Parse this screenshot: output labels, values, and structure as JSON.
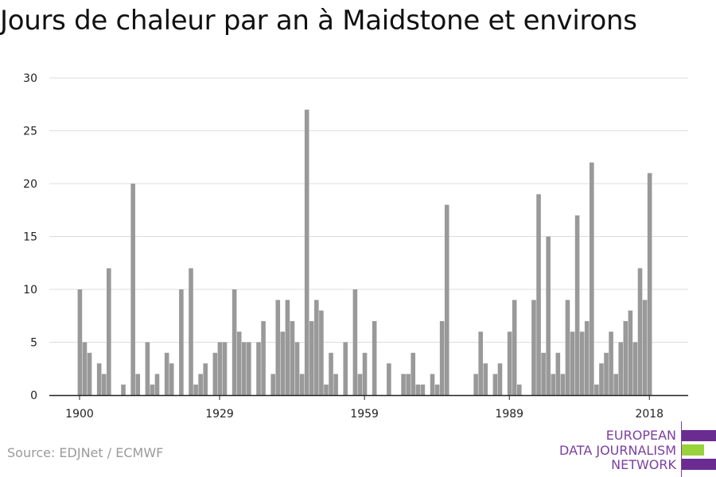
{
  "title": "Jours de chaleur par an à Maidstone et environs",
  "source": "Source: EDJNet / ECMWF",
  "logo": {
    "lines": [
      "EUROPEAN",
      "DATA JOURNALISM",
      "NETWORK"
    ],
    "colors": {
      "purple": "#6a2c91",
      "green": "#9ad23c",
      "text": "#7b3fa1"
    }
  },
  "chart_data": {
    "type": "bar",
    "title": "Jours de chaleur par an à Maidstone et environs",
    "xlabel": "",
    "ylabel": "",
    "ylim": [
      0,
      30
    ],
    "yticks": [
      0,
      5,
      10,
      15,
      20,
      25,
      30
    ],
    "xticks": [
      1900,
      1929,
      1959,
      1989,
      2018
    ],
    "grid": true,
    "bar_color": "#999999",
    "x": [
      1900,
      1901,
      1902,
      1903,
      1904,
      1905,
      1906,
      1907,
      1908,
      1909,
      1910,
      1911,
      1912,
      1913,
      1914,
      1915,
      1916,
      1917,
      1918,
      1919,
      1920,
      1921,
      1922,
      1923,
      1924,
      1925,
      1926,
      1927,
      1928,
      1929,
      1930,
      1931,
      1932,
      1933,
      1934,
      1935,
      1936,
      1937,
      1938,
      1939,
      1940,
      1941,
      1942,
      1943,
      1944,
      1945,
      1946,
      1947,
      1948,
      1949,
      1950,
      1951,
      1952,
      1953,
      1954,
      1955,
      1956,
      1957,
      1958,
      1959,
      1960,
      1961,
      1962,
      1963,
      1964,
      1965,
      1966,
      1967,
      1968,
      1969,
      1970,
      1971,
      1972,
      1973,
      1974,
      1975,
      1976,
      1977,
      1978,
      1979,
      1980,
      1981,
      1982,
      1983,
      1984,
      1985,
      1986,
      1987,
      1988,
      1989,
      1990,
      1991,
      1992,
      1993,
      1994,
      1995,
      1996,
      1997,
      1998,
      1999,
      2000,
      2001,
      2002,
      2003,
      2004,
      2005,
      2006,
      2007,
      2008,
      2009,
      2010,
      2011,
      2012,
      2013,
      2014,
      2015,
      2016,
      2017,
      2018
    ],
    "values": [
      10,
      5,
      4,
      0,
      3,
      2,
      12,
      0,
      0,
      1,
      0,
      20,
      2,
      0,
      5,
      1,
      2,
      0,
      4,
      3,
      0,
      10,
      0,
      12,
      1,
      2,
      3,
      0,
      4,
      5,
      5,
      0,
      10,
      6,
      5,
      5,
      0,
      5,
      7,
      0,
      2,
      9,
      6,
      9,
      7,
      5,
      2,
      27,
      7,
      9,
      8,
      1,
      4,
      2,
      0,
      5,
      0,
      10,
      2,
      4,
      0,
      7,
      0,
      0,
      3,
      0,
      0,
      2,
      2,
      4,
      1,
      1,
      0,
      2,
      1,
      7,
      18,
      0,
      0,
      0,
      0,
      0,
      2,
      6,
      3,
      0,
      2,
      3,
      0,
      6,
      9,
      1,
      0,
      0,
      9,
      19,
      4,
      15,
      2,
      4,
      2,
      9,
      6,
      17,
      6,
      7,
      22,
      1,
      3,
      4,
      6,
      2,
      5,
      7,
      8,
      5,
      12,
      9,
      21
    ]
  }
}
